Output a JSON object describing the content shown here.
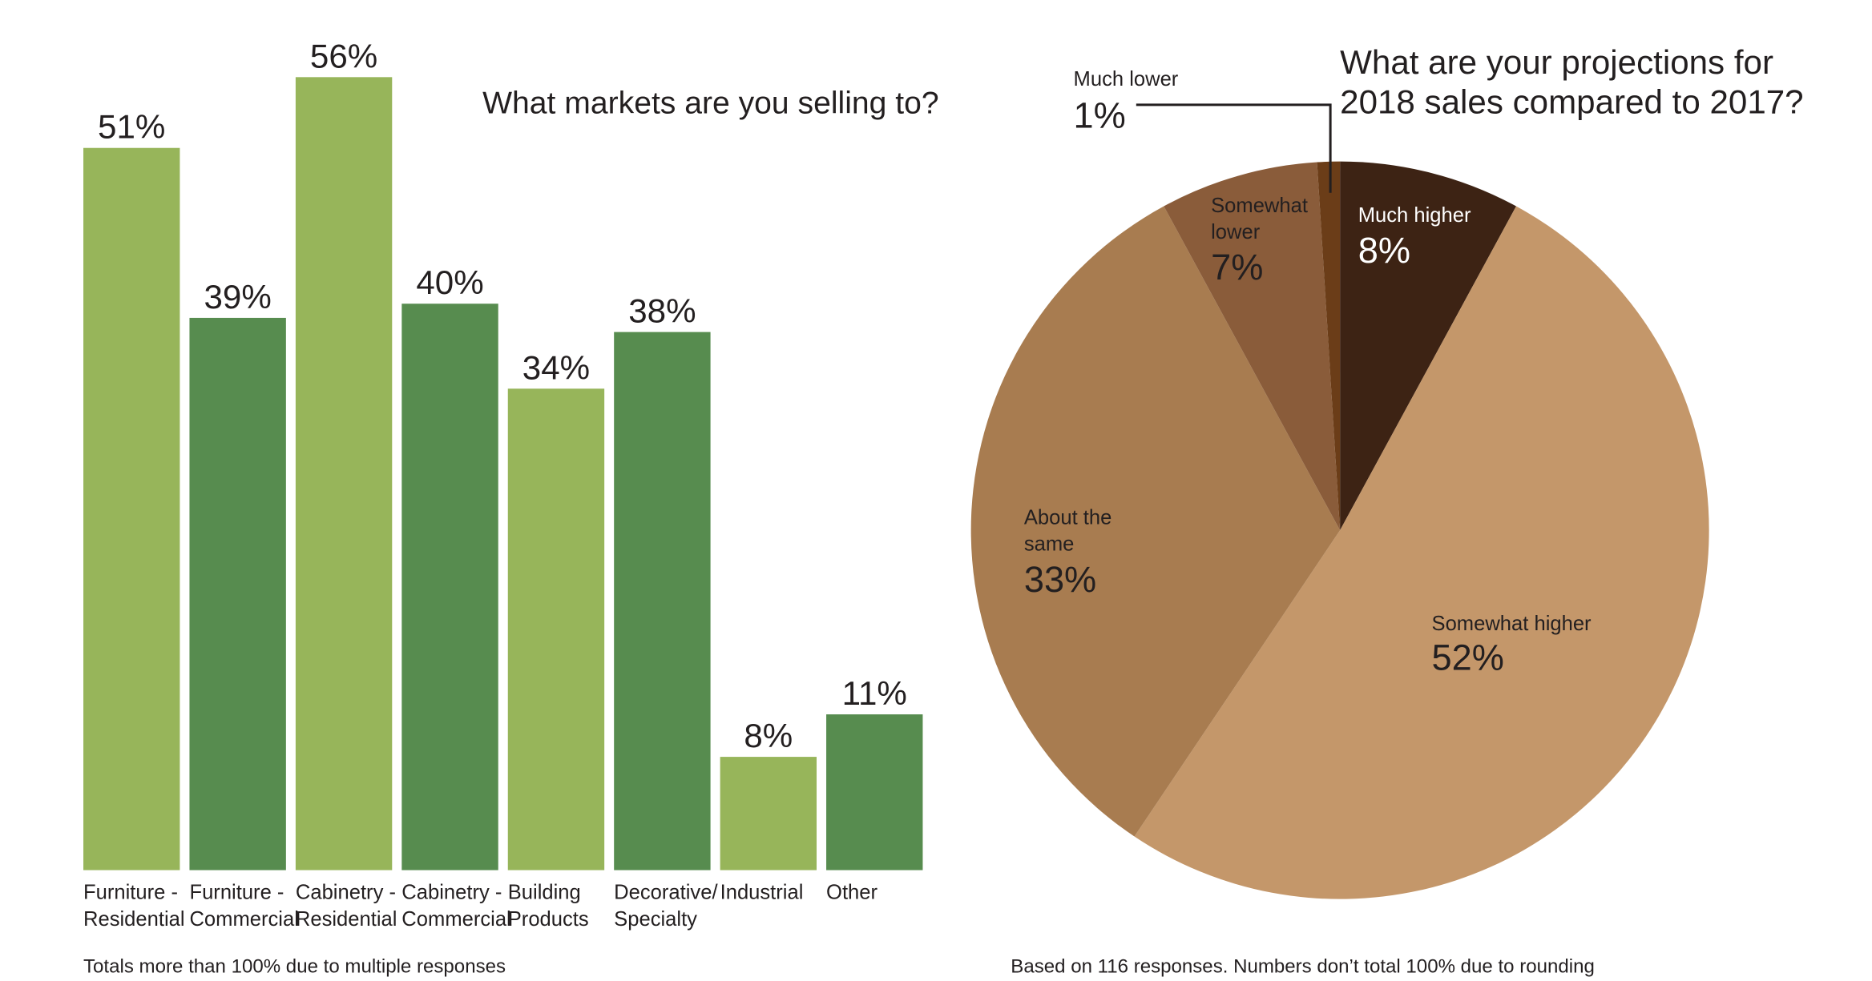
{
  "chart_data": [
    {
      "type": "bar",
      "title": "What markets are you selling to?",
      "categories": [
        "Furniture -\nResidential",
        "Furniture -\nCommercial",
        "Cabinetry -\nResidential",
        "Cabinetry -\nCommercial",
        "Building\nProducts",
        "Decorative/\nSpecialty",
        "Industrial",
        "Other"
      ],
      "values": [
        51,
        39,
        56,
        40,
        34,
        38,
        8,
        11
      ],
      "value_labels": [
        "51%",
        "39%",
        "56%",
        "40%",
        "34%",
        "38%",
        "8%",
        "11%"
      ],
      "colors": [
        "#97b55a",
        "#578c4f",
        "#97b55a",
        "#578c4f",
        "#97b55a",
        "#578c4f",
        "#97b55a",
        "#578c4f"
      ],
      "note": "Totals more than 100% due to multiple responses"
    },
    {
      "type": "pie",
      "title": "What are your projections for\n2018 sales compared to 2017?",
      "labels": [
        "Much higher",
        "Somewhat higher",
        "About the\nsame",
        "Somewhat\nlower",
        "Much lower"
      ],
      "values": [
        8,
        52,
        33,
        7,
        1
      ],
      "value_labels": [
        "8%",
        "52%",
        "33%",
        "7%",
        "1%"
      ],
      "colors": [
        "#3d2314",
        "#c4976a",
        "#a87c50",
        "#8a5c3a",
        "#6b3d18"
      ],
      "note": "Based on 116 responses. Numbers don’t total 100% due to rounding"
    }
  ]
}
